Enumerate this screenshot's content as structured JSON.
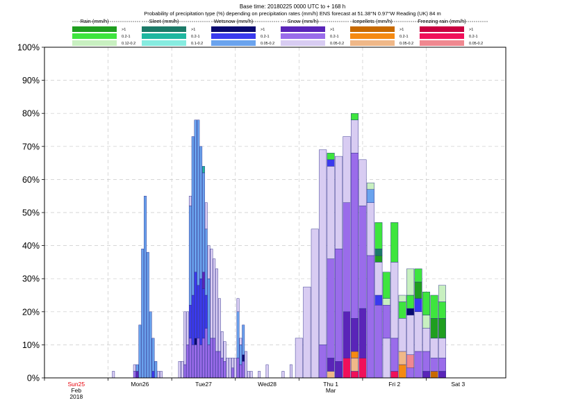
{
  "chart_data": {
    "type": "bar",
    "stacked": true,
    "title_line1": "Base time: 20180225 0000 UTC to + 168 h",
    "title_line2": "Probability of precipitation type (%) depending on precipitation rates (mm/h) ENS forecast at 51.38°N  0.97°W Reading (UK) 84 m",
    "y_tick_labels": [
      "0%",
      "10%",
      "20%",
      "30%",
      "40%",
      "50%",
      "60%",
      "70%",
      "80%",
      "90%",
      "100%"
    ],
    "ylim": [
      0,
      100
    ],
    "grid": true,
    "legend_groups": [
      {
        "name": "Rain (mm/h)",
        "items": [
          {
            "label": ">1",
            "color": "#1f9e1f"
          },
          {
            "label": "0.2-1",
            "color": "#3ee53e"
          },
          {
            "label": "0.12-0.2",
            "color": "#c8f0c0"
          }
        ]
      },
      {
        "name": "Sleet (mm/h)",
        "items": [
          {
            "label": ">1",
            "color": "#1c7a68"
          },
          {
            "label": "0.2-1",
            "color": "#1fb7a0"
          },
          {
            "label": "0.1-0.2",
            "color": "#86ece0"
          }
        ]
      },
      {
        "name": "Wetsnow (mm/h)",
        "items": [
          {
            "label": ">1",
            "color": "#0a0a70"
          },
          {
            "label": "0.2-1",
            "color": "#3a3aee"
          },
          {
            "label": "0.05-0.2",
            "color": "#6aa3ee"
          }
        ]
      },
      {
        "name": "Snow (mm/h)",
        "items": [
          {
            "label": ">1",
            "color": "#5a24b8"
          },
          {
            "label": "0.2-1",
            "color": "#9a6cea"
          },
          {
            "label": "0.05-0.2",
            "color": "#d8ccf2"
          }
        ]
      },
      {
        "name": "Icepellets (mm/h)",
        "items": [
          {
            "label": ">1",
            "color": "#c86a00"
          },
          {
            "label": "0.2-1",
            "color": "#f58a12"
          },
          {
            "label": "0.05-0.2",
            "color": "#f0b888"
          }
        ]
      },
      {
        "name": "Freezing rain (mm/h)",
        "items": [
          {
            "label": ">1",
            "color": "#c80040"
          },
          {
            "label": "0.2-1",
            "color": "#f0105a"
          },
          {
            "label": "0.05-0.2",
            "color": "#f08890"
          }
        ]
      }
    ],
    "day_labels": [
      {
        "label": "Sun25",
        "sub1": "Feb",
        "sub2": "2018",
        "hour": 0,
        "color": "#e8000a"
      },
      {
        "label": "Mon26",
        "sub1": "",
        "sub2": "",
        "hour": 24,
        "color": "#000000"
      },
      {
        "label": "Tue27",
        "sub1": "",
        "sub2": "",
        "hour": 48,
        "color": "#000000"
      },
      {
        "label": "Wed28",
        "sub1": "",
        "sub2": "",
        "hour": 72,
        "color": "#000000"
      },
      {
        "label": "Thu 1",
        "sub1": "Mar",
        "sub2": "",
        "hour": 96,
        "color": "#000000"
      },
      {
        "label": "Fri 2",
        "sub1": "",
        "sub2": "",
        "hour": 120,
        "color": "#000000"
      },
      {
        "label": "Sat 3",
        "sub1": "",
        "sub2": "",
        "hour": 144,
        "color": "#000000"
      }
    ],
    "x_range_hours": [
      -12,
      162
    ],
    "bars": [
      {
        "hour": 14,
        "segments": [
          [
            "#d8ccf2",
            2
          ]
        ]
      },
      {
        "hour": 22,
        "segments": [
          [
            "#9a6cea",
            2
          ],
          [
            "#d8ccf2",
            2
          ]
        ]
      },
      {
        "hour": 23,
        "segments": [
          [
            "#5a24b8",
            2
          ],
          [
            "#6aa3ee",
            2
          ]
        ]
      },
      {
        "hour": 24,
        "segments": [
          [
            "#6aa3ee",
            16
          ]
        ]
      },
      {
        "hour": 25,
        "segments": [
          [
            "#6aa3ee",
            39
          ]
        ]
      },
      {
        "hour": 26,
        "segments": [
          [
            "#6aa3ee",
            55
          ]
        ]
      },
      {
        "hour": 27,
        "segments": [
          [
            "#6aa3ee",
            38
          ]
        ]
      },
      {
        "hour": 28,
        "segments": [
          [
            "#6aa3ee",
            20
          ]
        ]
      },
      {
        "hour": 29,
        "segments": [
          [
            "#3a3aee",
            2
          ],
          [
            "#6aa3ee",
            10
          ]
        ]
      },
      {
        "hour": 30,
        "segments": [
          [
            "#6aa3ee",
            5
          ]
        ]
      },
      {
        "hour": 31,
        "segments": [
          [
            "#d8ccf2",
            2
          ]
        ]
      },
      {
        "hour": 32,
        "segments": [
          [
            "#d8ccf2",
            2
          ]
        ]
      },
      {
        "hour": 39,
        "segments": [
          [
            "#d8ccf2",
            5
          ]
        ]
      },
      {
        "hour": 40,
        "segments": [
          [
            "#d8ccf2",
            5
          ]
        ]
      },
      {
        "hour": 41,
        "segments": [
          [
            "#9a6cea",
            4
          ],
          [
            "#d8ccf2",
            16
          ]
        ]
      },
      {
        "hour": 42,
        "segments": [
          [
            "#9a6cea",
            10
          ],
          [
            "#d8ccf2",
            10
          ]
        ]
      },
      {
        "hour": 43,
        "segments": [
          [
            "#9a6cea",
            12
          ],
          [
            "#3a3aee",
            10
          ],
          [
            "#6aa3ee",
            30
          ],
          [
            "#d8ccf2",
            3
          ]
        ]
      },
      {
        "hour": 44,
        "segments": [
          [
            "#9a6cea",
            10
          ],
          [
            "#3a3aee",
            15
          ],
          [
            "#6aa3ee",
            48
          ]
        ]
      },
      {
        "hour": 45,
        "segments": [
          [
            "#9a6cea",
            10
          ],
          [
            "#0a0a70",
            2
          ],
          [
            "#3a3aee",
            20
          ],
          [
            "#6aa3ee",
            46
          ]
        ]
      },
      {
        "hour": 46,
        "segments": [
          [
            "#9a6cea",
            12
          ],
          [
            "#3a3aee",
            16
          ],
          [
            "#6aa3ee",
            50
          ]
        ]
      },
      {
        "hour": 47,
        "segments": [
          [
            "#9a6cea",
            10
          ],
          [
            "#3a3aee",
            20
          ],
          [
            "#6aa3ee",
            40
          ]
        ]
      },
      {
        "hour": 48,
        "segments": [
          [
            "#9a6cea",
            12
          ],
          [
            "#3a3aee",
            15
          ],
          [
            "#5a24b8",
            5
          ],
          [
            "#6aa3ee",
            30
          ],
          [
            "#1fb7a0",
            2
          ]
        ]
      },
      {
        "hour": 49,
        "segments": [
          [
            "#9a6cea",
            15
          ],
          [
            "#3a3aee",
            10
          ],
          [
            "#6aa3ee",
            20
          ],
          [
            "#d8ccf2",
            8
          ]
        ]
      },
      {
        "hour": 50,
        "segments": [
          [
            "#9a6cea",
            10
          ],
          [
            "#6aa3ee",
            20
          ],
          [
            "#d8ccf2",
            10
          ]
        ]
      },
      {
        "hour": 51,
        "segments": [
          [
            "#9a6cea",
            12
          ],
          [
            "#d8ccf2",
            27
          ]
        ]
      },
      {
        "hour": 52,
        "segments": [
          [
            "#9a6cea",
            12
          ],
          [
            "#d8ccf2",
            24
          ]
        ]
      },
      {
        "hour": 53,
        "segments": [
          [
            "#9a6cea",
            8
          ],
          [
            "#d8ccf2",
            25
          ]
        ]
      },
      {
        "hour": 54,
        "segments": [
          [
            "#9a6cea",
            8
          ],
          [
            "#d8ccf2",
            16
          ]
        ]
      },
      {
        "hour": 55,
        "segments": [
          [
            "#9a6cea",
            6
          ],
          [
            "#d8ccf2",
            8
          ]
        ]
      },
      {
        "hour": 56,
        "segments": [
          [
            "#9a6cea",
            5
          ],
          [
            "#d8ccf2",
            6
          ]
        ]
      },
      {
        "hour": 57,
        "segments": [
          [
            "#d8ccf2",
            6
          ]
        ]
      },
      {
        "hour": 58,
        "segments": [
          [
            "#d8ccf2",
            6
          ]
        ]
      },
      {
        "hour": 59,
        "segments": [
          [
            "#9a6cea",
            3
          ],
          [
            "#d8ccf2",
            3
          ]
        ]
      },
      {
        "hour": 60,
        "segments": [
          [
            "#d8ccf2",
            6
          ]
        ]
      },
      {
        "hour": 61,
        "segments": [
          [
            "#9a6cea",
            6
          ],
          [
            "#6aa3ee",
            14
          ],
          [
            "#d8ccf2",
            4
          ]
        ]
      },
      {
        "hour": 62,
        "segments": [
          [
            "#9a6cea",
            4
          ],
          [
            "#6aa3ee",
            6
          ],
          [
            "#d8ccf2",
            2
          ]
        ]
      },
      {
        "hour": 63,
        "segments": [
          [
            "#9a6cea",
            5
          ],
          [
            "#0a0a70",
            2
          ],
          [
            "#6aa3ee",
            9
          ]
        ]
      },
      {
        "hour": 64,
        "segments": [
          [
            "#d8ccf2",
            8
          ]
        ]
      },
      {
        "hour": 65,
        "segments": [
          [
            "#d8ccf2",
            2
          ]
        ]
      },
      {
        "hour": 66,
        "segments": [
          [
            "#d8ccf2",
            2
          ]
        ]
      },
      {
        "hour": 69,
        "segments": [
          [
            "#d8ccf2",
            2
          ]
        ]
      },
      {
        "hour": 72,
        "segments": [
          [
            "#d8ccf2",
            4
          ]
        ]
      },
      {
        "hour": 78,
        "segments": [
          [
            "#d8ccf2",
            2
          ]
        ]
      },
      {
        "hour": 81,
        "segments": [
          [
            "#d8ccf2",
            4
          ]
        ]
      },
      {
        "hour": 84,
        "segments": [
          [
            "#d8ccf2",
            12
          ]
        ]
      },
      {
        "hour": 87,
        "segments": [
          [
            "#d8ccf2",
            27.5
          ]
        ]
      },
      {
        "hour": 90,
        "segments": [
          [
            "#d8ccf2",
            45
          ]
        ]
      },
      {
        "hour": 93,
        "segments": [
          [
            "#9a6cea",
            10
          ],
          [
            "#d8ccf2",
            59
          ]
        ]
      },
      {
        "hour": 96,
        "segments": [
          [
            "#f0b888",
            2
          ],
          [
            "#5a24b8",
            4
          ],
          [
            "#9a6cea",
            30
          ],
          [
            "#d8ccf2",
            28
          ],
          [
            "#3a3aee",
            2
          ],
          [
            "#3ee53e",
            2
          ]
        ]
      },
      {
        "hour": 99,
        "segments": [
          [
            "#5a24b8",
            5
          ],
          [
            "#9a6cea",
            34
          ],
          [
            "#d8ccf2",
            28
          ]
        ]
      },
      {
        "hour": 102,
        "segments": [
          [
            "#f0105a",
            6
          ],
          [
            "#5a24b8",
            14
          ],
          [
            "#9a6cea",
            33
          ],
          [
            "#d8ccf2",
            20
          ]
        ]
      },
      {
        "hour": 105,
        "segments": [
          [
            "#f0105a",
            2
          ],
          [
            "#f0b888",
            4
          ],
          [
            "#f58a12",
            2
          ],
          [
            "#5a24b8",
            10
          ],
          [
            "#9a6cea",
            50
          ],
          [
            "#d8ccf2",
            10
          ],
          [
            "#3ee53e",
            2
          ]
        ]
      },
      {
        "hour": 108,
        "segments": [
          [
            "#f0105a",
            6
          ],
          [
            "#5a24b8",
            15
          ],
          [
            "#9a6cea",
            31
          ],
          [
            "#d8ccf2",
            14
          ]
        ]
      },
      {
        "hour": 111,
        "segments": [
          [
            "#9a6cea",
            37
          ],
          [
            "#d8ccf2",
            16
          ],
          [
            "#6aa3ee",
            4
          ],
          [
            "#c8f0c0",
            2
          ]
        ]
      },
      {
        "hour": 114,
        "segments": [
          [
            "#9a6cea",
            22
          ],
          [
            "#3a3aee",
            3
          ],
          [
            "#d8ccf2",
            10
          ],
          [
            "#1f9e1f",
            2
          ],
          [
            "#1c7a68",
            2
          ],
          [
            "#3ee53e",
            8
          ]
        ]
      },
      {
        "hour": 117,
        "segments": [
          [
            "#d8ccf2",
            12
          ],
          [
            "#9a6cea",
            10
          ],
          [
            "#c8f0c0",
            2
          ],
          [
            "#3ee53e",
            8
          ]
        ]
      },
      {
        "hour": 120,
        "segments": [
          [
            "#f0105a",
            2
          ],
          [
            "#9a6cea",
            10
          ],
          [
            "#d8ccf2",
            23
          ],
          [
            "#3ee53e",
            12
          ]
        ]
      },
      {
        "hour": 123,
        "segments": [
          [
            "#f58a12",
            4
          ],
          [
            "#f0b888",
            4
          ],
          [
            "#d8ccf2",
            10
          ],
          [
            "#3ee53e",
            5
          ],
          [
            "#c8f0c0",
            2
          ]
        ]
      },
      {
        "hour": 126,
        "segments": [
          [
            "#9a6cea",
            3
          ],
          [
            "#f08890",
            4
          ],
          [
            "#d8ccf2",
            12
          ],
          [
            "#0a0a70",
            2
          ],
          [
            "#3ee53e",
            4
          ],
          [
            "#c8f0c0",
            8
          ]
        ]
      },
      {
        "hour": 129,
        "segments": [
          [
            "#9a6cea",
            8
          ],
          [
            "#d8ccf2",
            12
          ],
          [
            "#3a3aee",
            4
          ],
          [
            "#1f9e1f",
            5
          ],
          [
            "#3ee53e",
            4
          ]
        ]
      },
      {
        "hour": 132,
        "segments": [
          [
            "#5a24b8",
            2
          ],
          [
            "#9a6cea",
            6
          ],
          [
            "#d8ccf2",
            7
          ],
          [
            "#c8f0c0",
            4
          ],
          [
            "#3ee53e",
            7
          ]
        ]
      },
      {
        "hour": 135,
        "segments": [
          [
            "#c86a00",
            2
          ],
          [
            "#9a6cea",
            4
          ],
          [
            "#d8ccf2",
            6
          ],
          [
            "#1f9e1f",
            6
          ],
          [
            "#3ee53e",
            7
          ]
        ]
      },
      {
        "hour": 138,
        "segments": [
          [
            "#5a24b8",
            2
          ],
          [
            "#9a6cea",
            4
          ],
          [
            "#d8ccf2",
            6
          ],
          [
            "#1f9e1f",
            6
          ],
          [
            "#3ee53e",
            5
          ],
          [
            "#c8f0c0",
            5
          ]
        ]
      }
    ]
  }
}
